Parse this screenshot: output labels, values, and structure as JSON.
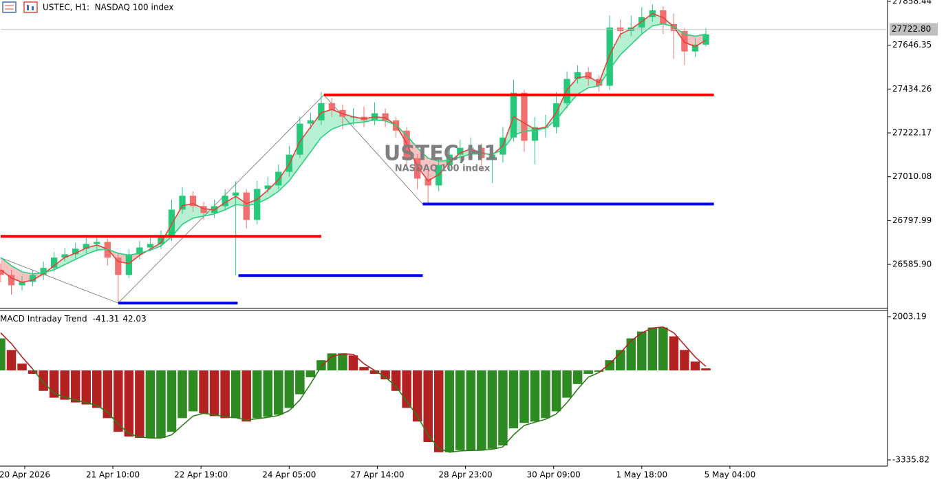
{
  "chart_data": [
    {
      "type": "candlestick",
      "title": "USTEC, H1:  NASDAQ 100 index",
      "watermark": [
        "USTEC,H1",
        "NASDAQ 100 index"
      ],
      "x": [
        0,
        4,
        8,
        12,
        16,
        20,
        24,
        28,
        32,
        36,
        40,
        44,
        48,
        52,
        56,
        60,
        64,
        68,
        72,
        76,
        80,
        84,
        88,
        92,
        96,
        100,
        104,
        108,
        112,
        116,
        120,
        124,
        128,
        132,
        136,
        140,
        144,
        148,
        152,
        156,
        160,
        164,
        168,
        172,
        176,
        180,
        184,
        188,
        192,
        196,
        200,
        204,
        208,
        212,
        216,
        220,
        224,
        228,
        232,
        236,
        240,
        244,
        248,
        252,
        256,
        260,
        264
      ],
      "open": [
        26560,
        26535,
        26485,
        26502,
        26535,
        26569,
        26619,
        26635,
        26662,
        26685,
        26695,
        26619,
        26535,
        26635,
        26668,
        26685,
        26718,
        26851,
        26918,
        26868,
        26835,
        26868,
        26918,
        26934,
        26801,
        26951,
        26968,
        27034,
        27117,
        27267,
        27283,
        27366,
        27333,
        27300,
        27300,
        27283,
        27317,
        27283,
        27233,
        27100,
        27001,
        26968,
        27067,
        27117,
        27150,
        27150,
        27100,
        27117,
        27200,
        27416,
        27184,
        27250,
        27250,
        27366,
        27483,
        27516,
        27483,
        27450,
        27732,
        27715,
        27732,
        27782,
        27815,
        27749,
        27715,
        27616,
        27649
      ],
      "high": [
        26590,
        26560,
        26530,
        26560,
        26600,
        26645,
        26665,
        26690,
        26730,
        26725,
        26710,
        26640,
        26660,
        26700,
        26715,
        26750,
        26900,
        26960,
        26940,
        26890,
        26900,
        26950,
        26990,
        26950,
        26990,
        27010,
        27070,
        27160,
        27300,
        27320,
        27420,
        27390,
        27360,
        27340,
        27350,
        27370,
        27340,
        27300,
        27250,
        27120,
        27050,
        27100,
        27160,
        27190,
        27200,
        27170,
        27150,
        27250,
        27480,
        27430,
        27300,
        27310,
        27420,
        27520,
        27550,
        27540,
        27500,
        27790,
        27770,
        27790,
        27830,
        27845,
        27835,
        27800,
        27730,
        27680,
        27730
      ],
      "low": [
        26500,
        26440,
        26460,
        26480,
        26510,
        26550,
        26600,
        26615,
        26640,
        26650,
        26580,
        26399,
        26520,
        26610,
        26650,
        26660,
        26700,
        26830,
        26840,
        26800,
        26810,
        26850,
        26532,
        26760,
        26780,
        26930,
        26950,
        27010,
        27100,
        27240,
        27260,
        27300,
        27240,
        27260,
        27250,
        27260,
        27250,
        27200,
        27040,
        26950,
        26878,
        26940,
        27040,
        27090,
        27110,
        27040,
        26980,
        27080,
        27180,
        27130,
        27070,
        27200,
        27220,
        27340,
        27460,
        27450,
        27420,
        27430,
        27680,
        27690,
        27700,
        27760,
        27700,
        27580,
        27550,
        27590,
        27640
      ],
      "close": [
        26535,
        26485,
        26502,
        26535,
        26569,
        26619,
        26635,
        26662,
        26685,
        26695,
        26619,
        26535,
        26635,
        26668,
        26685,
        26718,
        26851,
        26918,
        26868,
        26835,
        26868,
        26918,
        26934,
        26801,
        26951,
        26968,
        27034,
        27117,
        27267,
        27283,
        27366,
        27333,
        27300,
        27300,
        27283,
        27317,
        27283,
        27233,
        27100,
        27001,
        26968,
        27067,
        27117,
        27150,
        27150,
        27100,
        27117,
        27200,
        27416,
        27184,
        27250,
        27250,
        27366,
        27483,
        27516,
        27483,
        27450,
        27732,
        27715,
        27732,
        27782,
        27815,
        27749,
        27715,
        27616,
        27649,
        27699
      ],
      "up_color": "#26c97a",
      "down_color": "#f07070",
      "fast_ma": {
        "color": "#e8403a",
        "values": [
          26560,
          26520,
          26500,
          26510,
          26540,
          26580,
          26620,
          26640,
          26665,
          26680,
          26660,
          26600,
          26590,
          26630,
          26660,
          26690,
          26780,
          26870,
          26880,
          26855,
          26850,
          26885,
          26915,
          26880,
          26900,
          26945,
          26995,
          27070,
          27180,
          27250,
          27320,
          27335,
          27315,
          27300,
          27290,
          27300,
          27295,
          27260,
          27170,
          27060,
          26990,
          27020,
          27080,
          27125,
          27145,
          27125,
          27115,
          27160,
          27300,
          27270,
          27240,
          27250,
          27320,
          27430,
          27490,
          27495,
          27465,
          27600,
          27700,
          27725,
          27760,
          27800,
          27780,
          27735,
          27660,
          27640,
          27670
        ]
      },
      "slow_ma": {
        "color": "#2bcf7d",
        "values": [
          26620,
          26580,
          26550,
          26540,
          26545,
          26560,
          26585,
          26610,
          26635,
          26655,
          26660,
          26640,
          26630,
          26640,
          26655,
          26675,
          26720,
          26780,
          26810,
          26820,
          26830,
          26850,
          26875,
          26870,
          26880,
          26905,
          26940,
          26990,
          27060,
          27130,
          27200,
          27240,
          27260,
          27270,
          27275,
          27285,
          27280,
          27260,
          27210,
          27150,
          27100,
          27085,
          27090,
          27105,
          27120,
          27120,
          27120,
          27140,
          27210,
          27230,
          27235,
          27245,
          27285,
          27350,
          27410,
          27440,
          27450,
          27530,
          27600,
          27650,
          27700,
          27740,
          27750,
          27735,
          27700,
          27690,
          27700
        ]
      },
      "ribbon_up_color": "#b5f0d3",
      "ribbon_down_color": "#f6c2c2",
      "levels": [
        {
          "value": 26722,
          "x": [
            0,
            120
          ],
          "color": "#ff0000"
        },
        {
          "value": 27406,
          "x": [
            121,
            267
          ],
          "color": "#ff0000"
        },
        {
          "value": 26399,
          "x": [
            44,
            88.7
          ],
          "color": "#0000ff"
        },
        {
          "value": 26532,
          "x": [
            89,
            158
          ],
          "color": "#0000ff"
        },
        {
          "value": 26878,
          "x": [
            158,
            267
          ],
          "color": "#0000ff"
        }
      ],
      "zigzag": {
        "color": "#707070",
        "x": [
          0,
          44,
          121,
          158
        ],
        "values": [
          26618,
          26399,
          27406,
          26878
        ]
      },
      "last_price": {
        "value": 27722.8,
        "label": "27722.80"
      },
      "xlim": [
        0,
        332
      ],
      "ylim": [
        26373,
        27865
      ],
      "yticks": [
        27858.44,
        27646.35,
        27434.26,
        27222.17,
        27010.08,
        26797.99,
        {
          "value": 26585.9,
          "label": "26585.90"
        }
      ],
      "grid": false
    },
    {
      "type": "macd",
      "title": "MACD Intraday Trend",
      "indicator_values": [
        -41.31,
        42.03
      ],
      "x": [
        0,
        4,
        8,
        12,
        16,
        20,
        24,
        28,
        32,
        36,
        40,
        44,
        48,
        52,
        56,
        60,
        64,
        68,
        72,
        76,
        80,
        84,
        88,
        92,
        96,
        100,
        104,
        108,
        112,
        116,
        120,
        124,
        128,
        132,
        136,
        140,
        144,
        148,
        152,
        156,
        160,
        164,
        168,
        172,
        176,
        180,
        184,
        188,
        192,
        196,
        200,
        204,
        208,
        212,
        216,
        220,
        224,
        228,
        232,
        236,
        240,
        244,
        248,
        252,
        256,
        260,
        264
      ],
      "values": [
        1194,
        762,
        254,
        -127,
        -762,
        -1016,
        -1092,
        -1194,
        -1270,
        -1397,
        -1778,
        -2286,
        -2464,
        -2515,
        -2515,
        -2515,
        -2286,
        -1778,
        -1524,
        -1600,
        -1702,
        -1778,
        -1778,
        -1905,
        -1778,
        -1727,
        -1651,
        -1397,
        -889,
        -254,
        381,
        635,
        635,
        559,
        127,
        -127,
        -330,
        -762,
        -1397,
        -1905,
        -2667,
        -3048,
        -3048,
        -2972,
        -2972,
        -2972,
        -2921,
        -2794,
        -2159,
        -1956,
        -1905,
        -1778,
        -1524,
        -1016,
        -508,
        -127,
        -51,
        381,
        762,
        1194,
        1448,
        1600,
        1600,
        1270,
        762,
        330,
        76
      ],
      "signal": {
        "values": [
          1400,
          1000,
          500,
          50,
          -450,
          -850,
          -1000,
          -1100,
          -1200,
          -1300,
          -1550,
          -2000,
          -2350,
          -2480,
          -2520,
          -2520,
          -2400,
          -2050,
          -1700,
          -1600,
          -1650,
          -1730,
          -1760,
          -1850,
          -1800,
          -1750,
          -1680,
          -1500,
          -1100,
          -500,
          150,
          520,
          620,
          600,
          250,
          0,
          -250,
          -600,
          -1150,
          -1700,
          -2400,
          -2900,
          -3050,
          -3000,
          -2980,
          -2975,
          -2940,
          -2850,
          -2400,
          -2050,
          -1930,
          -1820,
          -1620,
          -1200,
          -700,
          -250,
          -80,
          250,
          650,
          1100,
          1400,
          1580,
          1620,
          1400,
          950,
          500,
          150
        ],
        "positive_color": "#b22222",
        "negative_color": "#2e7d1a"
      },
      "up_color": "#2e8b22",
      "down_color": "#b22222",
      "xlim": [
        0,
        332
      ],
      "ylim": [
        -3565,
        2207
      ],
      "yticks": [
        2003.19,
        -3335.82
      ],
      "xticks": [
        {
          "value": 9,
          "label": "20 Apr 2026"
        },
        {
          "value": 42,
          "label": "21 Apr 10:00"
        },
        {
          "value": 75,
          "label": "22 Apr 19:00"
        },
        {
          "value": 108,
          "label": "24 Apr 05:00"
        },
        {
          "value": 141,
          "label": "27 Apr 14:00"
        },
        {
          "value": 174,
          "label": "28 Apr 23:00"
        },
        {
          "value": 207,
          "label": "30 Apr 09:00"
        },
        {
          "value": 240,
          "label": "1 May 18:00"
        },
        {
          "value": 273,
          "label": "5 May 04:00"
        }
      ],
      "grid": false
    }
  ]
}
